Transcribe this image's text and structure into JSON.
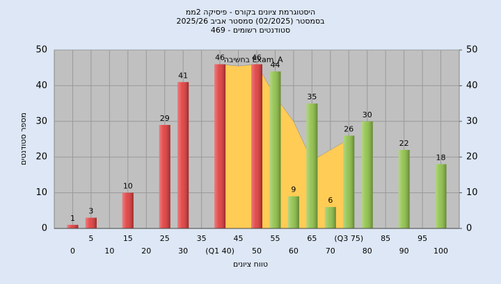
{
  "chart_data": {
    "type": "bar",
    "title": [
      "היסטוגרמת ציונים בקורס - פיסיקה 2ממ",
      "בסמסטר (02/2025) סמסטר אביב 2025/26",
      "סטודנטים רשומים - 469"
    ],
    "x_label": "טווח ציונים",
    "y_label": "מספר סטודנטים",
    "x": [
      0,
      5,
      15,
      25,
      30,
      40,
      50,
      55,
      60,
      65,
      70,
      75,
      80,
      90,
      100
    ],
    "values": [
      1,
      3,
      10,
      29,
      41,
      46,
      46,
      44,
      9,
      35,
      6,
      26,
      30,
      22,
      18
    ],
    "colors": [
      "#e03838",
      "#e03838",
      "#e03838",
      "#e03838",
      "#e03838",
      "#e03838",
      "#e03838",
      "#8cbf44",
      "#8cbf44",
      "#8cbf44",
      "#8cbf44",
      "#8cbf44",
      "#8cbf44",
      "#8cbf44",
      "#8cbf44"
    ],
    "area": {
      "name": "Exam_A בחשיבה",
      "color": "#ffcc55",
      "x": [
        40,
        45,
        50,
        55,
        60,
        65,
        70,
        75
      ],
      "values": [
        46,
        45.5,
        46,
        37,
        30,
        19,
        22,
        25
      ]
    },
    "xlim": [
      -5,
      105
    ],
    "xticks": [
      0,
      5,
      10,
      15,
      20,
      25,
      30,
      35,
      {
        "value": 40,
        "label": "(Q1 40)"
      },
      45,
      50,
      55,
      60,
      65,
      70,
      {
        "value": 75,
        "label": "(Q3 75)"
      },
      80,
      85,
      90,
      95,
      100
    ],
    "ylim": [
      0,
      50
    ],
    "yticks": [
      0,
      10,
      20,
      30,
      40,
      50
    ],
    "y2lim": [
      0,
      50
    ],
    "y2ticks": [
      0,
      10,
      20,
      30,
      40,
      50
    ],
    "grid": true
  }
}
